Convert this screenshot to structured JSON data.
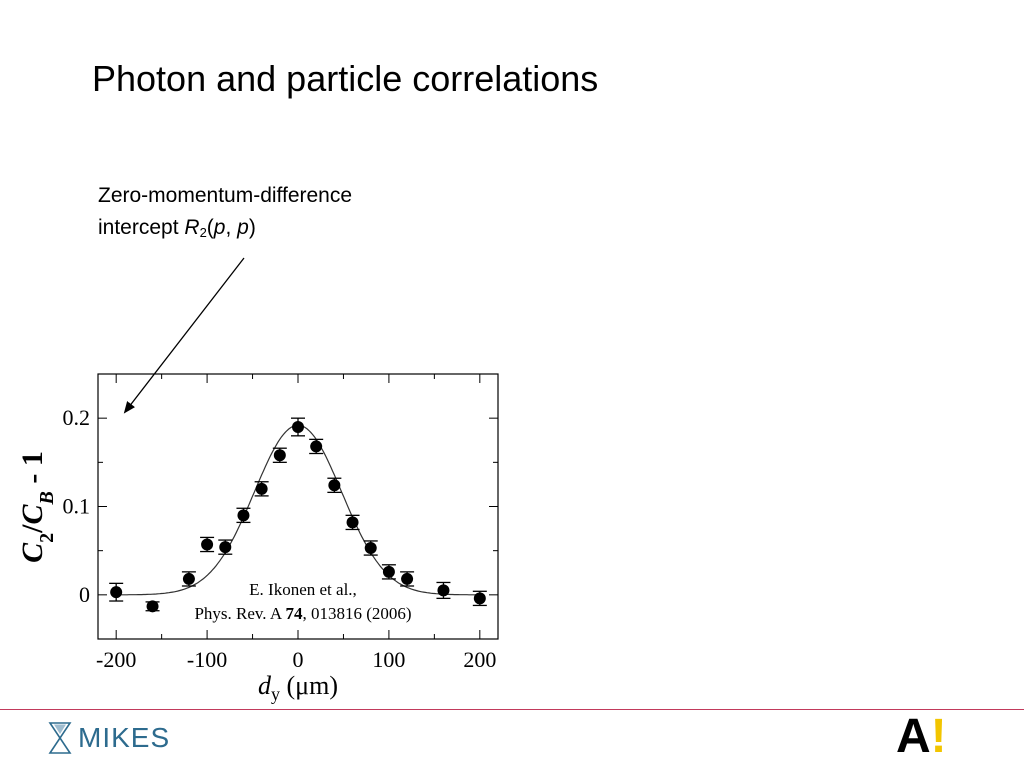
{
  "slide": {
    "title": "Photon and particle correlations"
  },
  "annotation": {
    "line1": "Zero-momentum-difference",
    "line2_prefix": "intercept ",
    "symbol": "R",
    "subscript": "2",
    "args": "(p, p)"
  },
  "citation": {
    "line1": "E. Ikonen et al.,",
    "line2_prefix": "Phys. Rev. A ",
    "volume": "74",
    "line2_suffix": ", 013816 (2006)"
  },
  "chart_data": {
    "type": "scatter",
    "xlabel": "d_y (μm)",
    "xlabel_main": "d",
    "xlabel_sub": "y",
    "xlabel_unit": " (μm)",
    "ylabel": "C_2/C_B - 1",
    "xlim": [
      -220,
      220
    ],
    "ylim": [
      -0.05,
      0.25
    ],
    "xticks": [
      -200,
      -100,
      0,
      100,
      200
    ],
    "xtick_labels": [
      "-200",
      "-100",
      "0",
      "100",
      "200"
    ],
    "yticks": [
      0,
      0.1,
      0.2
    ],
    "ytick_labels": [
      "0",
      "0.1",
      "0.2"
    ],
    "grid": false,
    "points": [
      {
        "x": -200,
        "y": 0.003,
        "err": 0.01
      },
      {
        "x": -160,
        "y": -0.013,
        "err": 0.005
      },
      {
        "x": -120,
        "y": 0.018,
        "err": 0.008
      },
      {
        "x": -100,
        "y": 0.057,
        "err": 0.008
      },
      {
        "x": -80,
        "y": 0.054,
        "err": 0.008
      },
      {
        "x": -60,
        "y": 0.09,
        "err": 0.008
      },
      {
        "x": -40,
        "y": 0.12,
        "err": 0.008
      },
      {
        "x": -20,
        "y": 0.158,
        "err": 0.008
      },
      {
        "x": 0,
        "y": 0.19,
        "err": 0.01
      },
      {
        "x": 20,
        "y": 0.168,
        "err": 0.008
      },
      {
        "x": 40,
        "y": 0.124,
        "err": 0.008
      },
      {
        "x": 60,
        "y": 0.082,
        "err": 0.008
      },
      {
        "x": 80,
        "y": 0.053,
        "err": 0.008
      },
      {
        "x": 100,
        "y": 0.026,
        "err": 0.008
      },
      {
        "x": 120,
        "y": 0.018,
        "err": 0.008
      },
      {
        "x": 160,
        "y": 0.005,
        "err": 0.009
      },
      {
        "x": 200,
        "y": -0.004,
        "err": 0.008
      }
    ],
    "fit": {
      "type": "gaussian",
      "amplitude": 0.192,
      "center": 0,
      "sigma": 48
    }
  },
  "logos": {
    "mikes": "MIKES",
    "aalto_letter": "A",
    "aalto_mark": "!",
    "mikes_color": "#2d6b8e",
    "aalto_color": "#f2c500"
  }
}
